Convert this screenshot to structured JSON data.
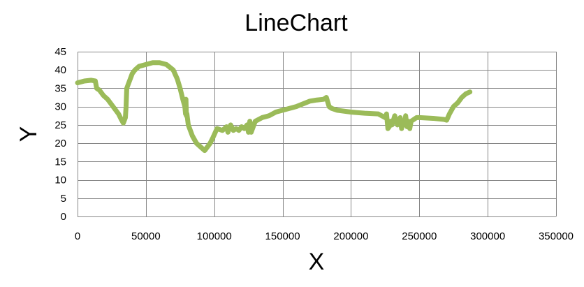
{
  "chart_data": {
    "type": "line",
    "title": "LineChart",
    "xlabel": "X",
    "ylabel": "Y",
    "xlim": [
      0,
      350000
    ],
    "ylim": [
      0,
      45
    ],
    "x_ticks": [
      0,
      50000,
      100000,
      150000,
      200000,
      250000,
      300000,
      350000
    ],
    "y_ticks": [
      0,
      5,
      10,
      15,
      20,
      25,
      30,
      35,
      40,
      45
    ],
    "grid": true,
    "legend": "none",
    "colors": {
      "series": "#9BBB59",
      "grid": "#868686",
      "axis": "#868686"
    },
    "series": [
      {
        "x": [
          0,
          5000,
          10000,
          13000,
          14000,
          16000,
          19000,
          22000,
          26000,
          30000,
          32000,
          33500,
          35000,
          35500,
          36000,
          37000,
          40000,
          42000,
          45000,
          50000,
          55000,
          60000,
          65000,
          70000,
          73000,
          75000,
          77000,
          78500,
          79000,
          79300,
          79600,
          80000,
          81000,
          82000,
          84000,
          87000,
          90000,
          93000,
          95000,
          97000,
          99000,
          102000,
          106000,
          109000,
          110000,
          112000,
          114000,
          116000,
          118000,
          120000,
          122000,
          124000,
          125000,
          126000,
          127000,
          128000,
          130000,
          135000,
          140000,
          145000,
          150000,
          160000,
          170000,
          175000,
          180000,
          182000,
          184000,
          186000,
          190000,
          200000,
          210000,
          220000,
          225000,
          226000,
          227000,
          228000,
          229000,
          230000,
          232000,
          234000,
          236000,
          237000,
          238000,
          239000,
          240000,
          241000,
          242000,
          243000,
          244000,
          246000,
          248000,
          250000,
          260000,
          268000,
          270000,
          272000,
          275000,
          278000,
          281000,
          284000,
          287000
        ],
        "y": [
          36.5,
          37,
          37.2,
          37,
          35,
          34.5,
          33,
          32,
          30,
          28,
          26.5,
          25.5,
          27,
          30,
          35,
          36,
          39,
          40,
          41,
          41.5,
          42,
          42,
          41.5,
          40,
          37.5,
          35,
          32,
          30,
          28,
          32,
          27.5,
          28,
          25,
          24,
          22,
          20,
          19,
          18,
          19,
          20,
          21.5,
          24,
          23.5,
          24.5,
          23,
          25,
          23.5,
          24,
          23.5,
          24.5,
          24,
          25,
          23,
          26,
          23,
          24,
          26,
          27,
          27.5,
          28.5,
          29,
          30,
          31.5,
          31.8,
          32,
          32.5,
          30,
          29.5,
          29,
          28.5,
          28.2,
          28,
          27,
          28,
          24,
          24.5,
          26,
          25,
          27.5,
          25,
          27,
          24,
          26,
          25,
          27.5,
          24.5,
          26,
          24,
          26,
          26.5,
          27,
          27,
          26.8,
          26.5,
          26.3,
          28,
          30,
          31,
          32.5,
          33.5,
          34
        ]
      }
    ]
  }
}
